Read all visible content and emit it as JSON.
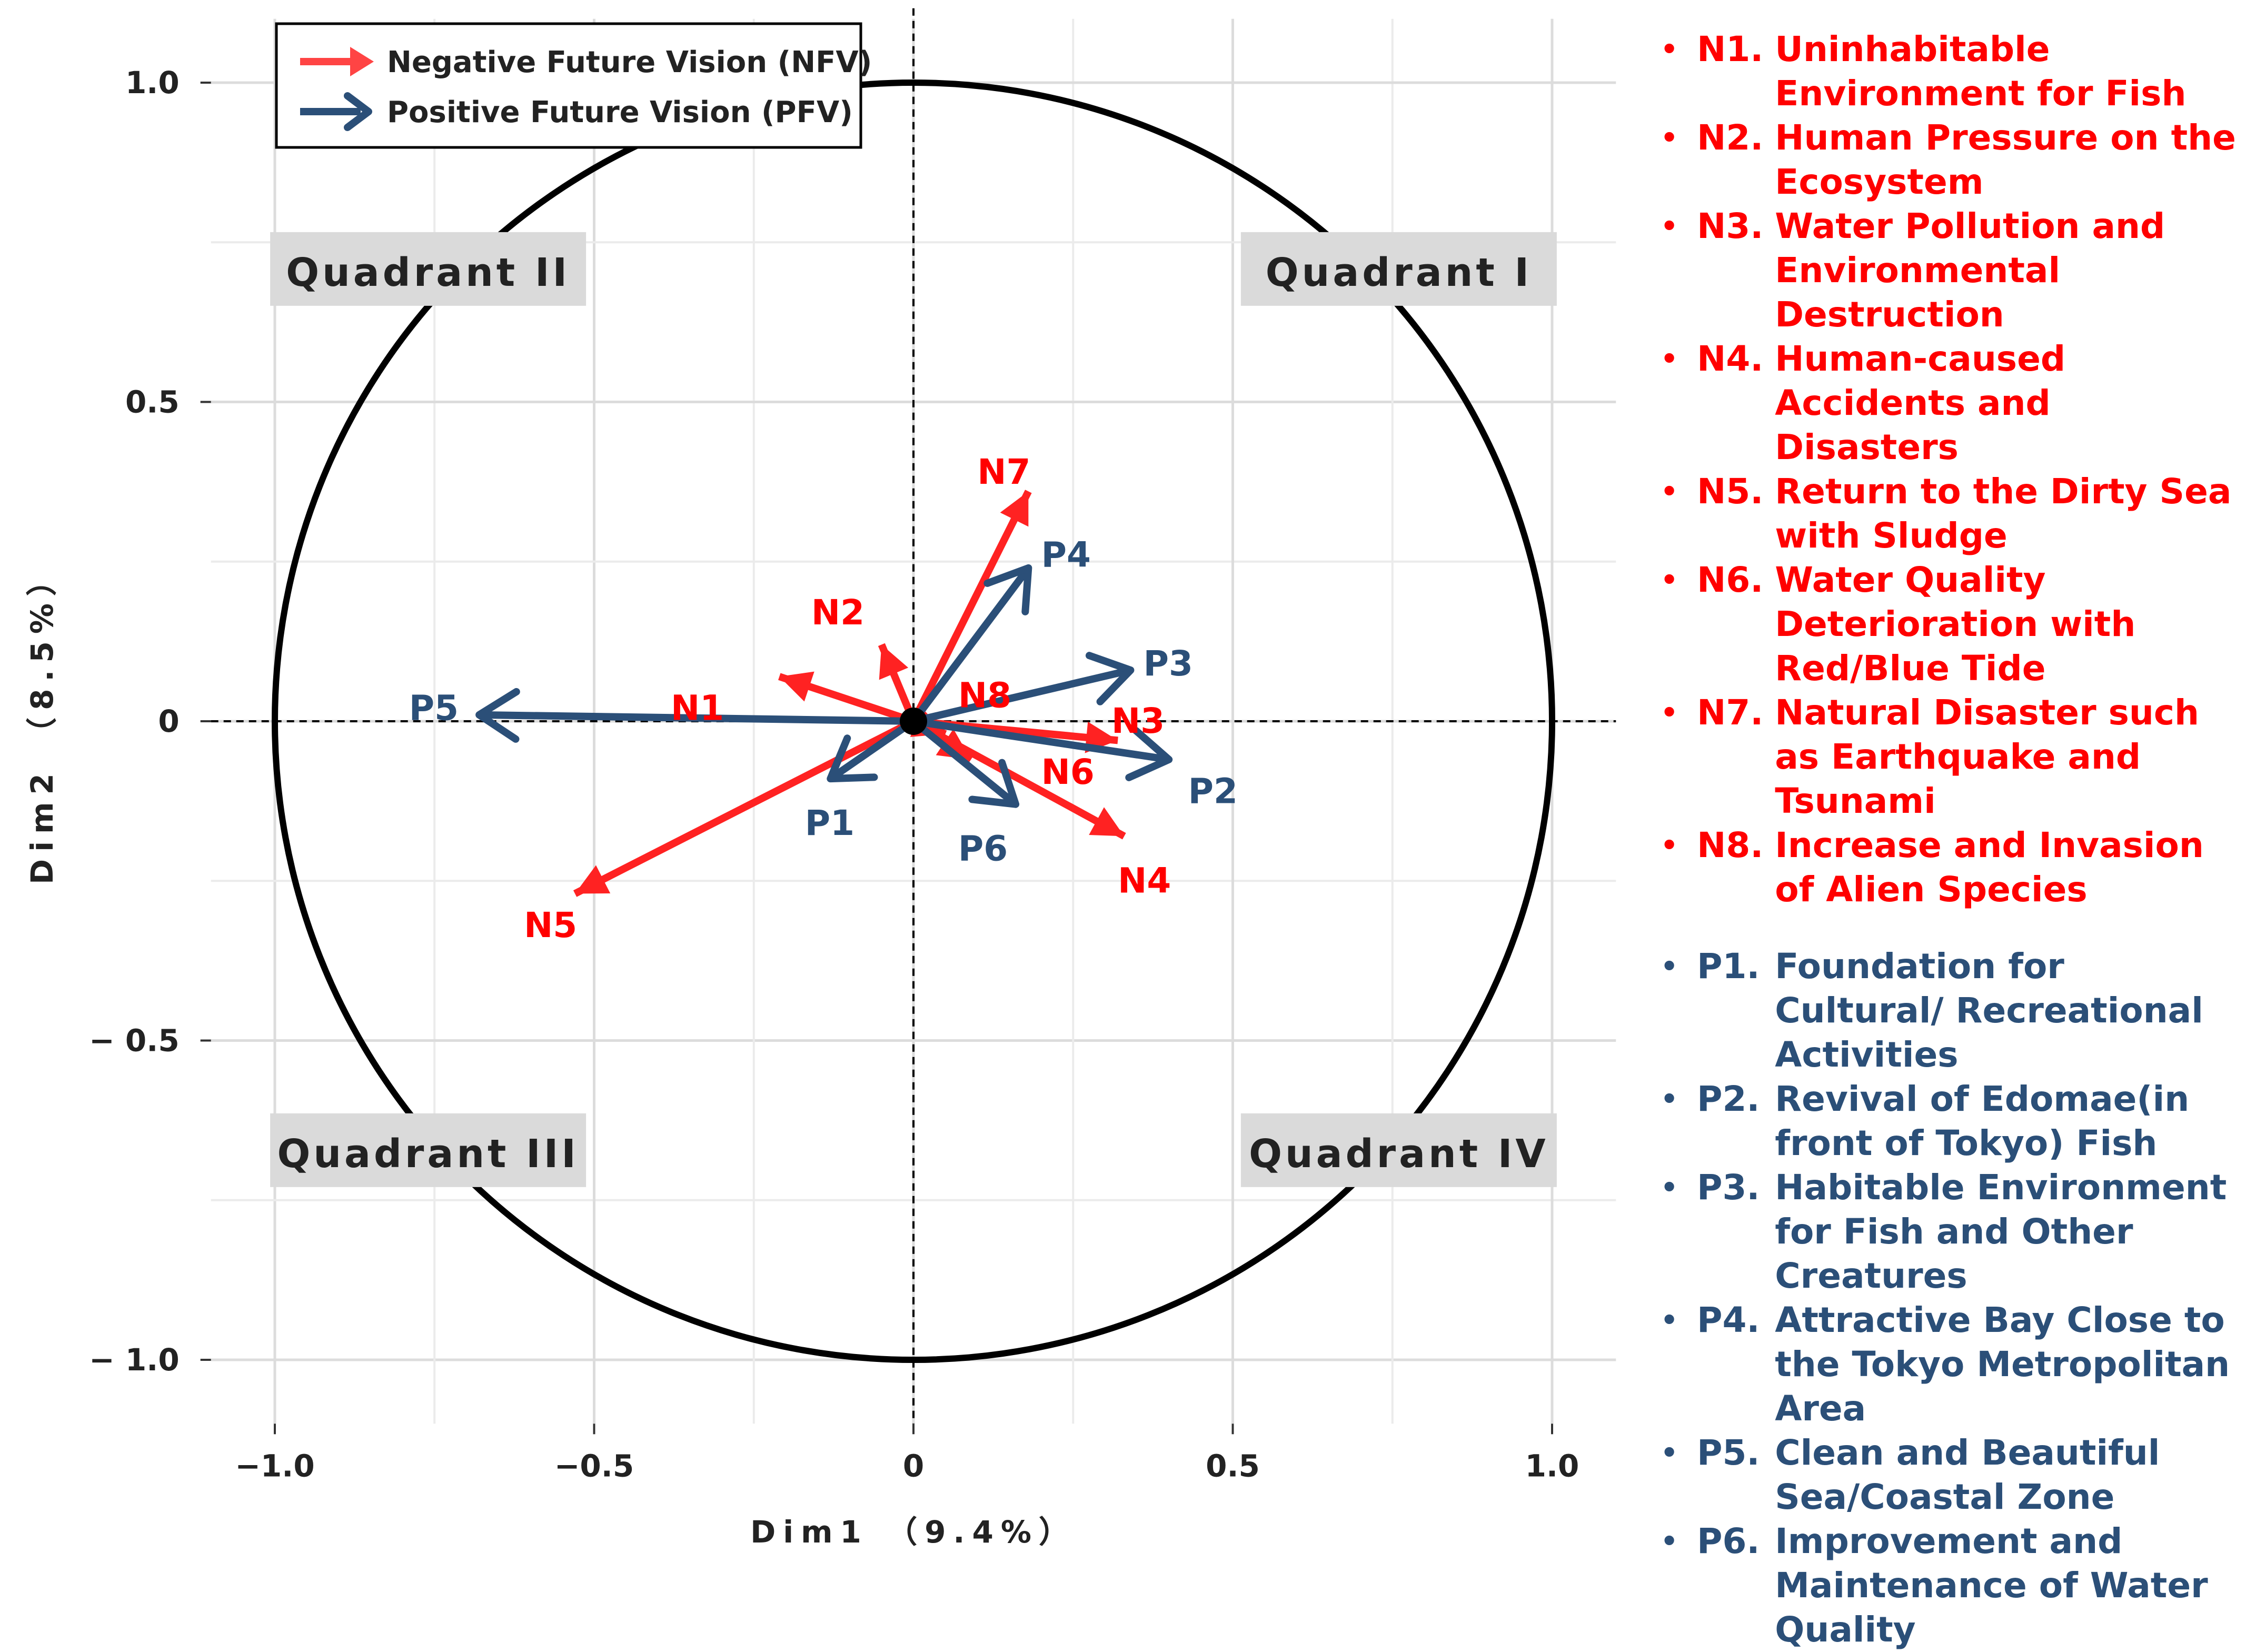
{
  "chart_data": {
    "type": "biplot",
    "xlabel": "Dim1 （9.4%）",
    "ylabel": "Dim2 （8.5%）",
    "xlim": [
      -1.1,
      1.1
    ],
    "ylim": [
      -1.1,
      1.1
    ],
    "xticks": [
      -1.0,
      -0.5,
      0,
      0.5,
      1.0
    ],
    "xtick_labels": [
      "−1.0",
      "−0.5",
      "0",
      "0.5",
      "1.0"
    ],
    "yticks": [
      1.0,
      0.5,
      0,
      -0.5,
      -1.0
    ],
    "ytick_labels": [
      "1.0",
      "0.5",
      "0",
      "− 0.5",
      "− 1.0"
    ],
    "grid": true,
    "unit_circle": true,
    "legend": {
      "position": "top-left",
      "entries": [
        {
          "label": "Negative Future Vision (NFV)",
          "color": "#ff4444"
        },
        {
          "label": "Positive Future Vision (PFV)",
          "color": "#2b4f78"
        }
      ]
    },
    "quadrants": [
      {
        "label": "Quadrant II",
        "pos": "top-left"
      },
      {
        "label": "Quadrant I",
        "pos": "top-right"
      },
      {
        "label": "Quadrant III",
        "pos": "bottom-left"
      },
      {
        "label": "Quadrant IV",
        "pos": "bottom-right"
      }
    ],
    "series": [
      {
        "name": "Negative Future Vision (NFV)",
        "color": "#ff2222",
        "label_color": "#ff0000",
        "vectors": [
          {
            "label": "N1",
            "x": -0.21,
            "y": 0.07
          },
          {
            "label": "N2",
            "x": -0.05,
            "y": 0.12
          },
          {
            "label": "N3",
            "x": 0.32,
            "y": -0.03
          },
          {
            "label": "N4",
            "x": 0.33,
            "y": -0.18
          },
          {
            "label": "N5",
            "x": -0.53,
            "y": -0.27
          },
          {
            "label": "N6",
            "x": 0.09,
            "y": -0.06
          },
          {
            "label": "N7",
            "x": 0.18,
            "y": 0.36
          },
          {
            "label": "N8",
            "x": 0.05,
            "y": -0.02
          }
        ]
      },
      {
        "name": "Positive Future Vision (PFV)",
        "color": "#2b4f78",
        "label_color": "#2b4f78",
        "vectors": [
          {
            "label": "P1",
            "x": -0.13,
            "y": -0.09
          },
          {
            "label": "P2",
            "x": 0.4,
            "y": -0.06
          },
          {
            "label": "P3",
            "x": 0.34,
            "y": 0.08
          },
          {
            "label": "P4",
            "x": 0.18,
            "y": 0.24
          },
          {
            "label": "P5",
            "x": -0.68,
            "y": 0.01
          },
          {
            "label": "P6",
            "x": 0.16,
            "y": -0.13
          }
        ]
      }
    ]
  },
  "legend_list": {
    "negative": [
      {
        "code": "N1.",
        "text": "Uninhabitable Environment for Fish"
      },
      {
        "code": "N2.",
        "text": "Human Pressure on the Ecosystem"
      },
      {
        "code": "N3.",
        "text": "Water Pollution and Environmental Destruction"
      },
      {
        "code": "N4.",
        "text": "Human-caused Accidents and Disasters"
      },
      {
        "code": "N5.",
        "text": "Return to the Dirty Sea with Sludge"
      },
      {
        "code": "N6.",
        "text": "Water Quality Deterioration with Red/Blue Tide"
      },
      {
        "code": "N7.",
        "text": "Natural Disaster such as Earthquake and Tsunami"
      },
      {
        "code": "N8.",
        "text": "Increase and Invasion of Alien Species"
      }
    ],
    "positive": [
      {
        "code": "P1.",
        "text": "Foundation for Cultural/ Recreational Activities"
      },
      {
        "code": "P2.",
        "text": "Revival of Edomae(in front of Tokyo) Fish"
      },
      {
        "code": "P3.",
        "text": "Habitable Environment for Fish and Other Creatures"
      },
      {
        "code": "P4.",
        "text": "Attractive Bay Close to the Tokyo Metropolitan Area"
      },
      {
        "code": "P5.",
        "text": "Clean and Beautiful Sea/Coastal Zone"
      },
      {
        "code": "P6.",
        "text": "Improvement and Maintenance of Water Quality"
      }
    ]
  }
}
